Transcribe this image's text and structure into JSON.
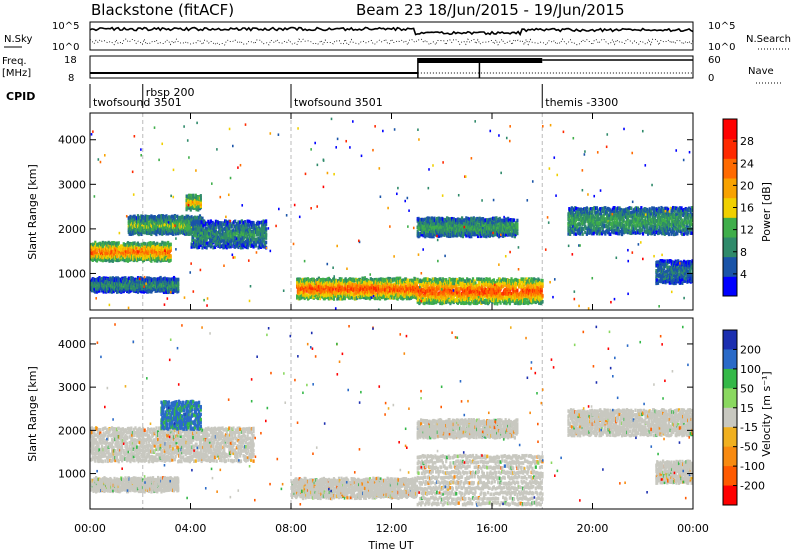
{
  "header": {
    "station": "Blackstone (fitACF)",
    "beam_date": "Beam 23   18/Jun/2015 - 19/Jun/2015"
  },
  "strip": {
    "nsky_label": "N.Sky",
    "nsky_ticks": [
      "10^5",
      "10^0"
    ],
    "nsearch_ticks": [
      "10^5",
      "10^0"
    ],
    "nsearch_label": "N.Search",
    "freq_label_1": "Freq.",
    "freq_label_2": "[MHz]",
    "freq_ticks": [
      "18",
      "8"
    ],
    "nave_ticks": [
      "60",
      "0"
    ],
    "nave_label": "Nave",
    "cpid_label": "CPID",
    "cpid_segments": [
      {
        "text": "twofsound 3501",
        "start_h": 0
      },
      {
        "text": "rbsp 200",
        "start_h": 2.1
      },
      {
        "text": "twofsound 3501",
        "start_h": 8.0
      },
      {
        "text": "themis -3300",
        "start_h": 18.0
      }
    ]
  },
  "colors": {
    "power": [
      "#0000ff",
      "#1a54a8",
      "#2f8a6a",
      "#3fae4a",
      "#f0d000",
      "#f8a200",
      "#ff6a00",
      "#ff2a00",
      "#ff0000"
    ],
    "velocity": [
      "#1c2fb0",
      "#2a6ac8",
      "#34b848",
      "#8ad860",
      "#c8c8c0",
      "#f0b020",
      "#f88a10",
      "#ff5a00",
      "#ff0000"
    ]
  },
  "chart_data": [
    {
      "type": "heatmap",
      "name": "power",
      "xlabel": "",
      "ylabel": "Slant Range [km]",
      "xlim": [
        0,
        24
      ],
      "ylim": [
        180,
        4600
      ],
      "yticks": [
        "1000",
        "2000",
        "3000",
        "4000"
      ],
      "colorbar": {
        "label": "Power [dB]",
        "ticks": [
          "4",
          "8",
          "12",
          "16",
          "20",
          "24",
          "28"
        ],
        "range": [
          0,
          32
        ]
      },
      "echo_bands": [
        {
          "t0": 0.0,
          "t1": 3.2,
          "r0": 1300,
          "r1": 1700,
          "level": 24
        },
        {
          "t0": 1.5,
          "t1": 4.5,
          "r0": 1900,
          "r1": 2300,
          "level": 14
        },
        {
          "t0": 0.0,
          "t1": 3.5,
          "r0": 600,
          "r1": 900,
          "level": 10
        },
        {
          "t0": 4.0,
          "t1": 7.0,
          "r0": 1600,
          "r1": 2200,
          "level": 10
        },
        {
          "t0": 3.8,
          "t1": 4.4,
          "r0": 2450,
          "r1": 2750,
          "level": 20
        },
        {
          "t0": 8.2,
          "t1": 13.0,
          "r0": 450,
          "r1": 900,
          "level": 26
        },
        {
          "t0": 13.0,
          "t1": 18.0,
          "r0": 350,
          "r1": 900,
          "level": 26
        },
        {
          "t0": 13.0,
          "t1": 17.0,
          "r0": 1850,
          "r1": 2250,
          "level": 12
        },
        {
          "t0": 19.0,
          "t1": 24.0,
          "r0": 1900,
          "r1": 2500,
          "level": 12
        },
        {
          "t0": 22.5,
          "t1": 24.0,
          "r0": 800,
          "r1": 1300,
          "level": 8
        }
      ]
    },
    {
      "type": "heatmap",
      "name": "velocity",
      "xlabel": "Time UT",
      "ylabel": "Slant Range [km]",
      "xlim": [
        0,
        24
      ],
      "ylim": [
        180,
        4600
      ],
      "xticks": [
        "00:00",
        "04:00",
        "08:00",
        "12:00",
        "16:00",
        "20:00",
        "00:00"
      ],
      "yticks": [
        "1000",
        "2000",
        "3000",
        "4000"
      ],
      "colorbar": {
        "label": "Velocity [m s⁻¹]",
        "ticks": [
          "200",
          "100",
          "50",
          "15",
          "-15",
          "-50",
          "-100",
          "-200"
        ]
      },
      "echo_bands": [
        {
          "t0": 0.0,
          "t1": 6.5,
          "r0": 1300,
          "r1": 2100,
          "v": 0
        },
        {
          "t0": 0.0,
          "t1": 3.5,
          "r0": 600,
          "r1": 900,
          "v": 0
        },
        {
          "t0": 2.8,
          "t1": 4.4,
          "r0": 2050,
          "r1": 2700,
          "v": 80
        },
        {
          "t0": 8.0,
          "t1": 13.0,
          "r0": 450,
          "r1": 900,
          "v": 0
        },
        {
          "t0": 13.0,
          "t1": 18.0,
          "r0": 300,
          "r1": 1500,
          "v": 0
        },
        {
          "t0": 13.0,
          "t1": 17.0,
          "r0": 1850,
          "r1": 2250,
          "v": 0
        },
        {
          "t0": 19.0,
          "t1": 24.0,
          "r0": 1900,
          "r1": 2500,
          "v": 0
        },
        {
          "t0": 22.5,
          "t1": 24.0,
          "r0": 800,
          "r1": 1300,
          "v": 0
        }
      ]
    }
  ]
}
